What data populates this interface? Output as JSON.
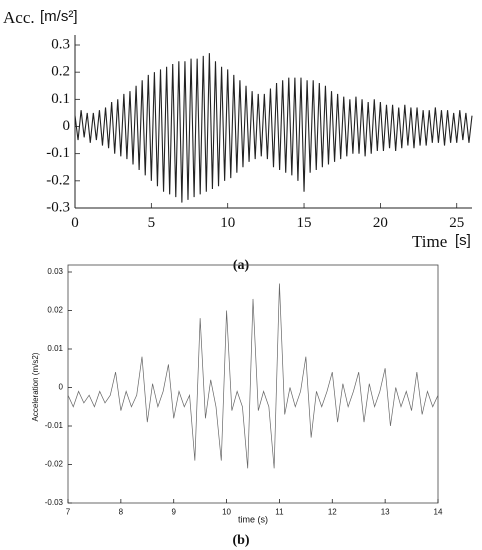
{
  "chart_data": [
    {
      "type": "line",
      "caption": "(a)",
      "y_label": "Acc.",
      "y_unit": "[m/s²]",
      "x_label": "Time",
      "x_unit": "[s]",
      "color": "#222222",
      "xlim": [
        0,
        26
      ],
      "ylim": [
        -0.3,
        0.3
      ],
      "xticks": [
        0,
        5,
        10,
        15,
        20,
        25
      ],
      "yticks": [
        0.3,
        0.2,
        0.1,
        0,
        -0.1,
        -0.2,
        -0.3
      ],
      "x": [
        0,
        0.2,
        0.4,
        0.6,
        0.8,
        1,
        1.2,
        1.4,
        1.6,
        1.8,
        2,
        2.2,
        2.4,
        2.6,
        2.8,
        3,
        3.2,
        3.4,
        3.6,
        3.8,
        4,
        4.2,
        4.4,
        4.6,
        4.8,
        5,
        5.2,
        5.4,
        5.6,
        5.8,
        6,
        6.2,
        6.4,
        6.6,
        6.8,
        7,
        7.2,
        7.4,
        7.6,
        7.8,
        8,
        8.2,
        8.4,
        8.6,
        8.8,
        9,
        9.2,
        9.4,
        9.6,
        9.8,
        10,
        10.2,
        10.4,
        10.6,
        10.8,
        11,
        11.2,
        11.4,
        11.6,
        11.8,
        12,
        12.2,
        12.4,
        12.6,
        12.8,
        13,
        13.2,
        13.4,
        13.6,
        13.8,
        14,
        14.2,
        14.4,
        14.6,
        14.8,
        15,
        15.2,
        15.4,
        15.6,
        15.8,
        16,
        16.2,
        16.4,
        16.6,
        16.8,
        17,
        17.2,
        17.4,
        17.6,
        17.8,
        18,
        18.2,
        18.4,
        18.6,
        18.8,
        19,
        19.2,
        19.4,
        19.6,
        19.8,
        20,
        20.2,
        20.4,
        20.6,
        20.8,
        21,
        21.2,
        21.4,
        21.6,
        21.8,
        22,
        22.2,
        22.4,
        22.6,
        22.8,
        23,
        23.2,
        23.4,
        23.6,
        23.8,
        24,
        24.2,
        24.4,
        24.6,
        24.8,
        25,
        25.2,
        25.4,
        25.6,
        25.8,
        26
      ],
      "values": [
        0.04,
        -0.05,
        0.06,
        -0.04,
        0.05,
        -0.06,
        0.05,
        -0.05,
        0.06,
        -0.07,
        0.07,
        -0.08,
        0.09,
        -0.1,
        0.1,
        -0.11,
        0.12,
        -0.12,
        0.13,
        -0.14,
        0.15,
        -0.16,
        0.17,
        -0.18,
        0.19,
        -0.2,
        0.2,
        -0.22,
        0.21,
        -0.24,
        0.22,
        -0.25,
        0.23,
        -0.26,
        0.24,
        -0.28,
        0.24,
        -0.27,
        0.25,
        -0.26,
        0.25,
        -0.25,
        0.26,
        -0.24,
        0.27,
        -0.23,
        0.24,
        -0.22,
        0.22,
        -0.2,
        0.21,
        -0.19,
        0.19,
        -0.17,
        0.17,
        -0.15,
        0.15,
        -0.13,
        0.13,
        -0.12,
        0.12,
        -0.11,
        0.12,
        -0.12,
        0.14,
        -0.15,
        0.16,
        -0.16,
        0.17,
        -0.17,
        0.18,
        -0.18,
        0.18,
        -0.2,
        0.18,
        -0.24,
        0.17,
        -0.17,
        0.17,
        -0.16,
        0.16,
        -0.15,
        0.15,
        -0.14,
        0.13,
        -0.13,
        0.12,
        -0.12,
        0.11,
        -0.11,
        0.1,
        -0.1,
        0.11,
        -0.1,
        0.1,
        -0.11,
        0.09,
        -0.1,
        0.1,
        -0.09,
        0.09,
        -0.09,
        0.08,
        -0.08,
        0.08,
        -0.09,
        0.07,
        -0.08,
        0.08,
        -0.07,
        0.07,
        -0.08,
        0.07,
        -0.07,
        0.06,
        -0.07,
        0.06,
        -0.06,
        0.07,
        -0.06,
        0.06,
        -0.07,
        0.06,
        -0.06,
        0.05,
        -0.06,
        0.06,
        -0.05,
        0.05,
        -0.06,
        0.04
      ]
    },
    {
      "type": "line",
      "caption": "(b)",
      "y_label": "Acceleration (m/s2)",
      "x_label": "time (s)",
      "color": "#666666",
      "xlim": [
        7,
        14
      ],
      "ylim": [
        -0.03,
        0.03
      ],
      "xticks": [
        7,
        8,
        9,
        10,
        11,
        12,
        13,
        14
      ],
      "yticks": [
        0.03,
        0.02,
        0.01,
        0,
        -0.01,
        -0.02,
        -0.03
      ],
      "x": [
        7,
        7.1,
        7.2,
        7.3,
        7.4,
        7.5,
        7.6,
        7.7,
        7.8,
        7.9,
        8,
        8.1,
        8.2,
        8.3,
        8.4,
        8.5,
        8.6,
        8.7,
        8.8,
        8.9,
        9,
        9.1,
        9.2,
        9.3,
        9.4,
        9.5,
        9.6,
        9.7,
        9.8,
        9.9,
        10,
        10.1,
        10.2,
        10.3,
        10.4,
        10.5,
        10.6,
        10.7,
        10.8,
        10.9,
        11,
        11.1,
        11.2,
        11.3,
        11.4,
        11.5,
        11.6,
        11.7,
        11.8,
        11.9,
        12,
        12.1,
        12.2,
        12.3,
        12.4,
        12.5,
        12.6,
        12.7,
        12.8,
        12.9,
        13,
        13.1,
        13.2,
        13.3,
        13.4,
        13.5,
        13.6,
        13.7,
        13.8,
        13.9,
        14
      ],
      "values": [
        -0.002,
        -0.005,
        -0.001,
        -0.004,
        -0.002,
        -0.005,
        -0.001,
        -0.004,
        -0.002,
        0.004,
        -0.006,
        -0.001,
        -0.005,
        -0.002,
        0.008,
        -0.009,
        0.001,
        -0.005,
        -0.001,
        0.006,
        -0.008,
        -0.001,
        -0.005,
        -0.002,
        -0.019,
        0.018,
        -0.008,
        0.002,
        -0.005,
        -0.019,
        0.02,
        -0.006,
        -0.001,
        -0.005,
        -0.021,
        0.023,
        -0.006,
        -0.001,
        -0.005,
        -0.021,
        0.027,
        -0.007,
        0,
        -0.005,
        -0.001,
        0.008,
        -0.013,
        -0.001,
        -0.005,
        -0.001,
        0.004,
        -0.009,
        0.001,
        -0.005,
        -0.001,
        0.004,
        -0.009,
        0.001,
        -0.005,
        -0.001,
        0.005,
        -0.01,
        0,
        -0.005,
        -0.001,
        -0.006,
        0.004,
        -0.007,
        -0.001,
        -0.005,
        -0.002
      ]
    }
  ]
}
